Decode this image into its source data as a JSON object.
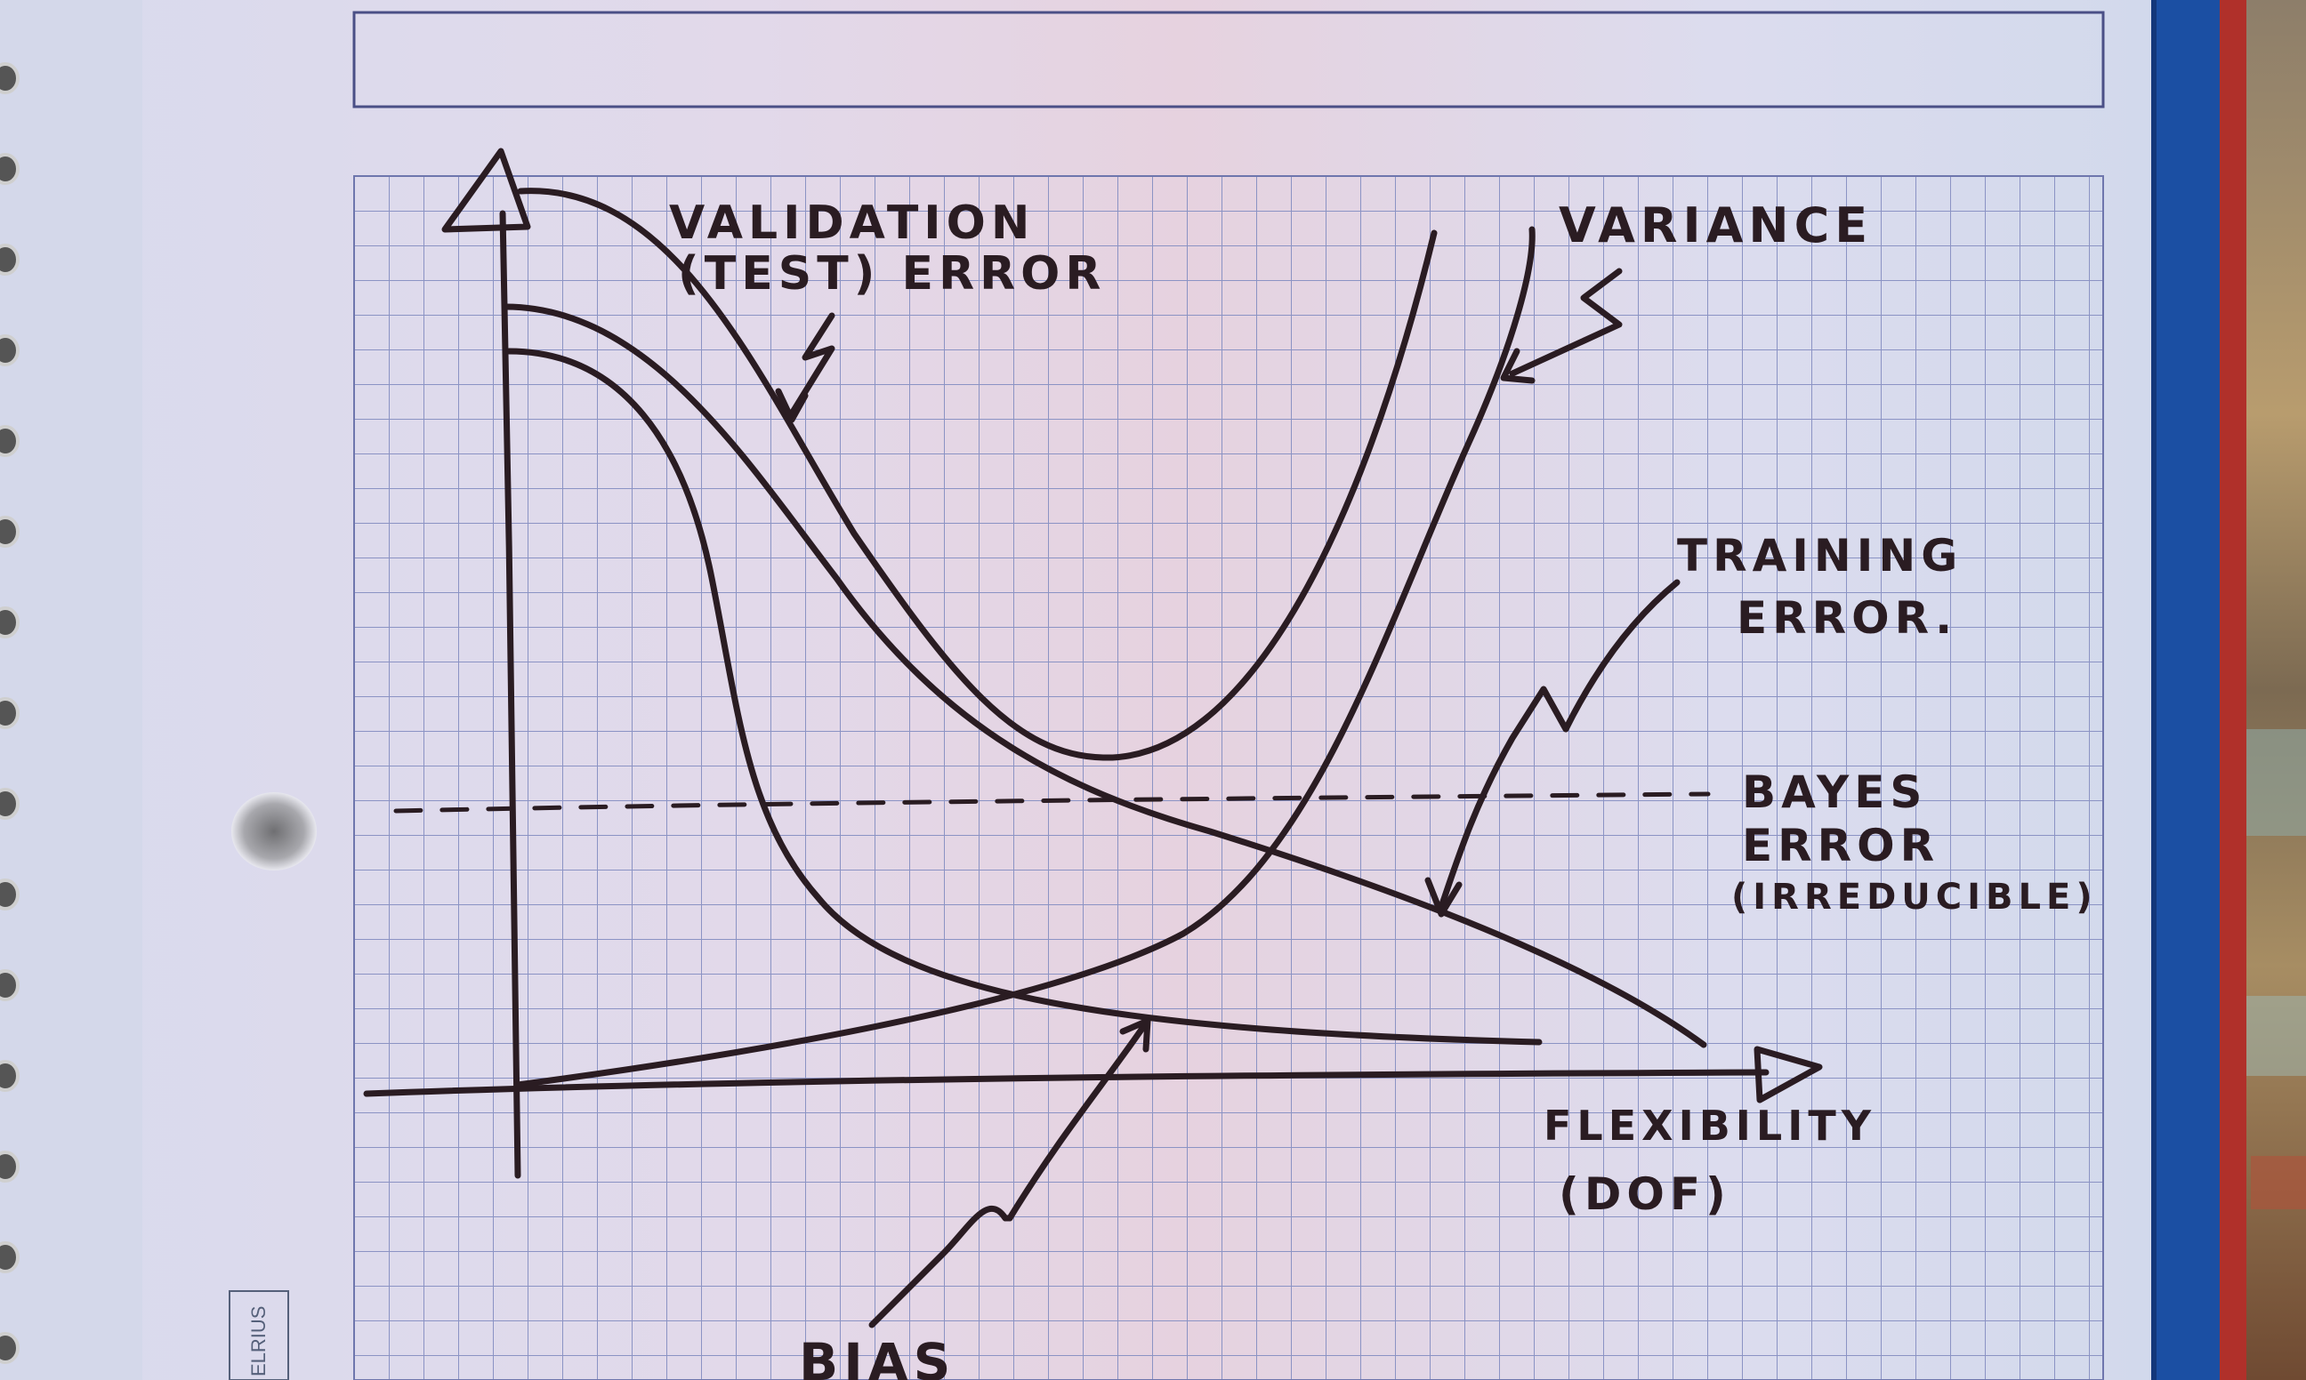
{
  "brand_label": "ELRIUS",
  "diagram": {
    "labels": {
      "validation_line1": "VALIDATION",
      "validation_line2": "(TEST) ERROR",
      "variance": "VARIANCE",
      "training_line1": "TRAINING",
      "training_line2": "ERROR.",
      "bayes_line1": "BAYES",
      "bayes_line2": "ERROR",
      "bayes_line3": "(IRREDUCIBLE)",
      "x_axis_line1": "FLEXIBILITY",
      "x_axis_line2": "(DOF)",
      "bias": "BIAS"
    }
  },
  "colors": {
    "ink": "#2a1c22",
    "paper": "#dfdff2",
    "grid": "#8b93c4",
    "notebook_cover": "#1b4fa3"
  }
}
